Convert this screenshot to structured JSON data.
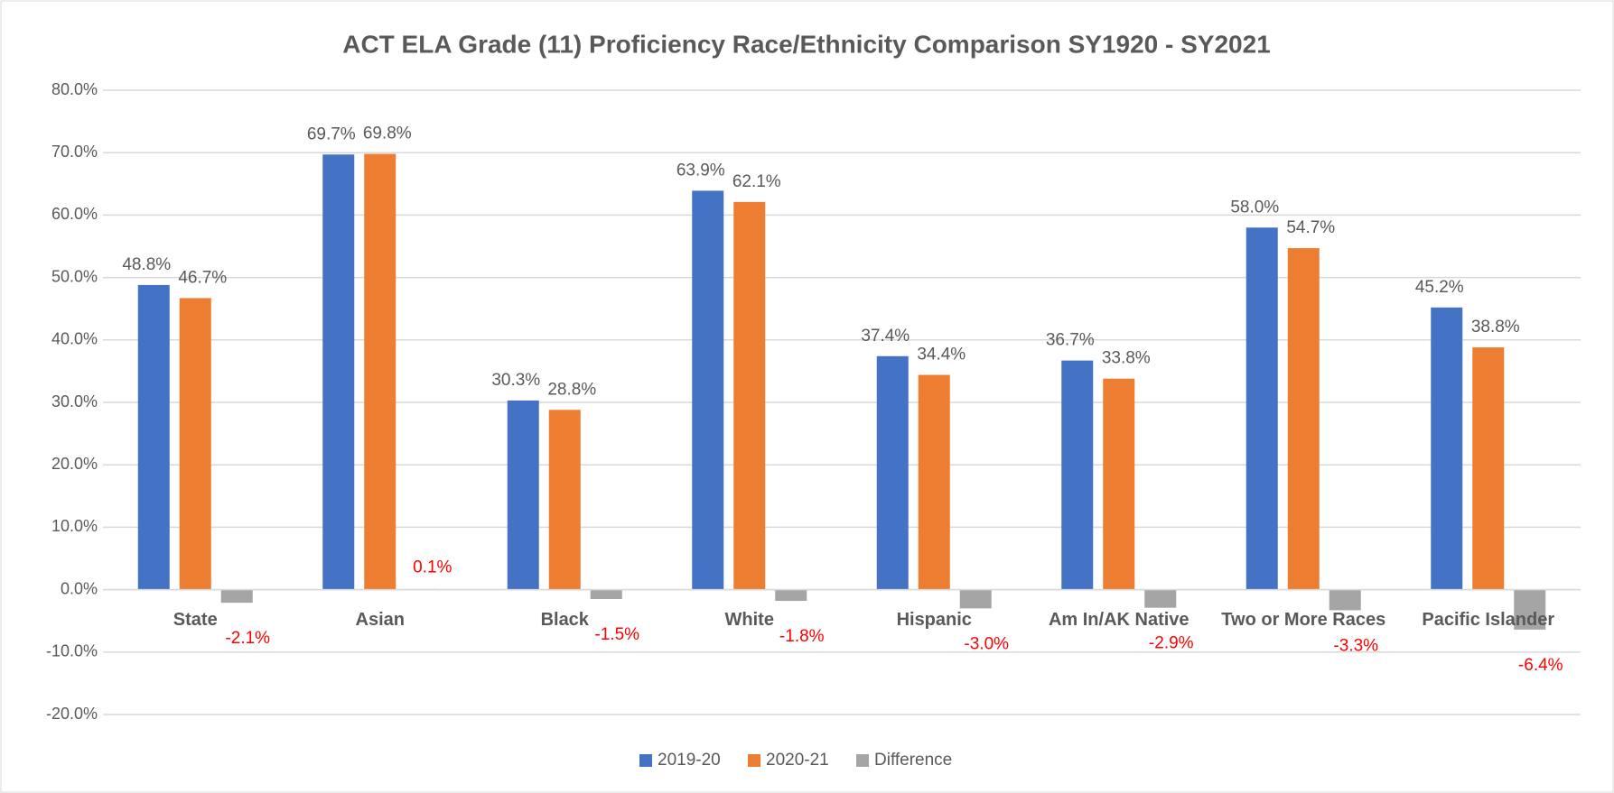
{
  "chart_data": {
    "type": "bar",
    "title": "ACT ELA Grade (11) Proficiency Race/Ethnicity Comparison SY1920 - SY2021",
    "categories": [
      "State",
      "Asian",
      "Black",
      "White",
      "Hispanic",
      "Am In/AK Native",
      "Two or More Races",
      "Pacific Islander"
    ],
    "series": [
      {
        "name": "2019-20",
        "color": "#4472c4",
        "values": [
          48.8,
          69.7,
          30.3,
          63.9,
          37.4,
          36.7,
          58.0,
          45.2
        ],
        "value_labels": [
          "48.8%",
          "69.7%",
          "30.3%",
          "63.9%",
          "37.4%",
          "36.7%",
          "58.0%",
          "45.2%"
        ]
      },
      {
        "name": "2020-21",
        "color": "#ed7d31",
        "values": [
          46.7,
          69.8,
          28.8,
          62.1,
          34.4,
          33.8,
          54.7,
          38.8
        ],
        "value_labels": [
          "46.7%",
          "69.8%",
          "28.8%",
          "62.1%",
          "34.4%",
          "33.8%",
          "54.7%",
          "38.8%"
        ]
      },
      {
        "name": "Difference",
        "color": "#a5a5a5",
        "label_color": "#ff0000",
        "values": [
          -2.1,
          0.1,
          -1.5,
          -1.8,
          -3.0,
          -2.9,
          -3.3,
          -6.4
        ],
        "value_labels": [
          "-2.1%",
          "0.1%",
          "-1.5%",
          "-1.8%",
          "-3.0%",
          "-2.9%",
          "-3.3%",
          "-6.4%"
        ]
      }
    ],
    "ylim": [
      -20,
      80
    ],
    "yticks": [
      {
        "value": -20,
        "label": "-20.0%"
      },
      {
        "value": -10,
        "label": "-10.0%"
      },
      {
        "value": 0,
        "label": "0.0%"
      },
      {
        "value": 10,
        "label": "10.0%"
      },
      {
        "value": 20,
        "label": "20.0%"
      },
      {
        "value": 30,
        "label": "30.0%"
      },
      {
        "value": 40,
        "label": "40.0%"
      },
      {
        "value": 50,
        "label": "50.0%"
      },
      {
        "value": 60,
        "label": "60.0%"
      },
      {
        "value": 70,
        "label": "70.0%"
      },
      {
        "value": 80,
        "label": "80.0%"
      }
    ],
    "grid": true,
    "legend": "bottom"
  }
}
